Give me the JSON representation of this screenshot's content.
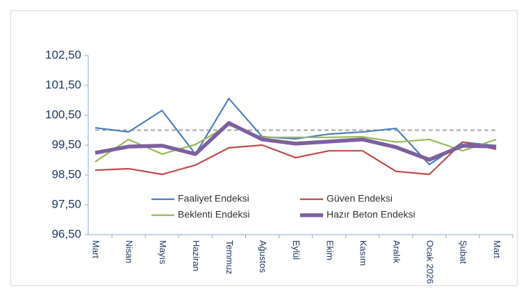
{
  "chart_data": {
    "type": "line",
    "categories": [
      "Mart",
      "Nisan",
      "Mayıs",
      "Haziran",
      "Temmuz",
      "Ağustos",
      "Eylül",
      "Ekim",
      "Kasım",
      "Aralık",
      "Ocak 2026",
      "Şubat",
      "Mart"
    ],
    "series": [
      {
        "name": "Faaliyet Endeksi",
        "color": "#4a7ebb",
        "width": 2.2,
        "values": [
          100.08,
          99.94,
          100.66,
          99.2,
          101.06,
          99.78,
          99.71,
          99.87,
          99.94,
          100.06,
          98.85,
          99.6,
          99.48
        ]
      },
      {
        "name": "Güven Endeksi",
        "color": "#be4b48",
        "width": 2.2,
        "values": [
          98.66,
          98.71,
          98.52,
          98.83,
          99.41,
          99.5,
          99.08,
          99.31,
          99.31,
          98.62,
          98.52,
          99.6,
          99.36
        ]
      },
      {
        "name": "Beklenti Endeksi",
        "color": "#98b954",
        "width": 2.2,
        "values": [
          98.94,
          99.69,
          99.2,
          99.52,
          100.17,
          99.76,
          99.76,
          99.76,
          99.78,
          99.6,
          99.69,
          99.31,
          99.69
        ]
      },
      {
        "name": "Hazır Beton Endeksi",
        "color": "#7d60a0",
        "width": 5.5,
        "values": [
          99.24,
          99.45,
          99.48,
          99.2,
          100.24,
          99.69,
          99.55,
          99.62,
          99.69,
          99.43,
          99.01,
          99.48,
          99.45
        ]
      }
    ],
    "reference_line": 100,
    "ylim": [
      96.5,
      102.5
    ],
    "yticks": [
      {
        "value": 96.5,
        "label": "96,50"
      },
      {
        "value": 97.5,
        "label": "97,50"
      },
      {
        "value": 98.5,
        "label": "98,50"
      },
      {
        "value": 99.5,
        "label": "99,50"
      },
      {
        "value": 100.5,
        "label": "100,50"
      },
      {
        "value": 101.5,
        "label": "101,50"
      },
      {
        "value": 102.5,
        "label": "102,50"
      }
    ]
  }
}
